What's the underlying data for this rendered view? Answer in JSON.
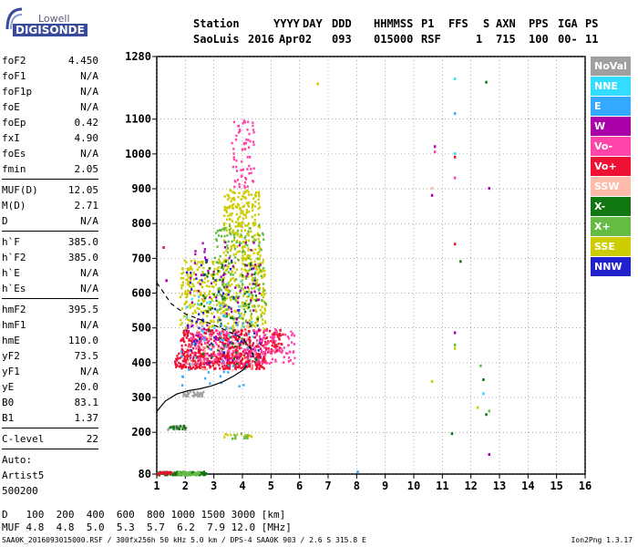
{
  "logo": {
    "line1": "Lowell",
    "line2": "DIGISONDE"
  },
  "header": {
    "labels": [
      "Station",
      "YYYY",
      "DAY",
      "DDD",
      "HHMMSS",
      "P1",
      "FFS",
      "S",
      "AXN",
      "PPS",
      "IGA",
      "PS"
    ],
    "values": [
      "SaoLuis",
      "2016",
      "Apr02",
      "093",
      "015000",
      "RSF",
      "1",
      "715",
      "100",
      "00-",
      "11"
    ]
  },
  "params": [
    [
      {
        "n": "foF2",
        "v": "4.450"
      },
      {
        "n": "foF1",
        "v": "N/A"
      },
      {
        "n": "foF1p",
        "v": "N/A"
      },
      {
        "n": "foE",
        "v": "N/A"
      },
      {
        "n": "foEp",
        "v": "0.42"
      },
      {
        "n": "fxI",
        "v": "4.90"
      },
      {
        "n": "foEs",
        "v": "N/A"
      },
      {
        "n": "fmin",
        "v": "2.05"
      }
    ],
    [
      {
        "n": "MUF(D)",
        "v": "12.05"
      },
      {
        "n": "M(D)",
        "v": "2.71"
      },
      {
        "n": "D",
        "v": "N/A"
      }
    ],
    [
      {
        "n": "h`F",
        "v": "385.0"
      },
      {
        "n": "h`F2",
        "v": "385.0"
      },
      {
        "n": "h`E",
        "v": "N/A"
      },
      {
        "n": "h`Es",
        "v": "N/A"
      }
    ],
    [
      {
        "n": "hmF2",
        "v": "395.5"
      },
      {
        "n": "hmF1",
        "v": "N/A"
      },
      {
        "n": "hmE",
        "v": "110.0"
      },
      {
        "n": "yF2",
        "v": "73.5"
      },
      {
        "n": "yF1",
        "v": "N/A"
      },
      {
        "n": "yE",
        "v": "20.0"
      },
      {
        "n": "B0",
        "v": "83.1"
      },
      {
        "n": "B1",
        "v": "1.37"
      }
    ],
    [
      {
        "n": "C-level",
        "v": "22"
      }
    ]
  ],
  "autoscaling": [
    "Auto:",
    "Artist5",
    "500200"
  ],
  "legend": [
    {
      "label": "NoVal",
      "color": "#a0a0a0"
    },
    {
      "label": "NNE",
      "color": "#33ddff"
    },
    {
      "label": "E",
      "color": "#33aaff"
    },
    {
      "label": "W",
      "color": "#aa00aa"
    },
    {
      "label": "Vo-",
      "color": "#ff44aa"
    },
    {
      "label": "Vo+",
      "color": "#ee1133"
    },
    {
      "label": "SSW",
      "color": "#ffbbaa"
    },
    {
      "label": "X-",
      "color": "#117711"
    },
    {
      "label": "X+",
      "color": "#66bb44"
    },
    {
      "label": "SSE",
      "color": "#cccc00"
    },
    {
      "label": "NNW",
      "color": "#2222cc"
    }
  ],
  "muf_table": {
    "d_label": "D",
    "d_values": "100  200  400  600  800 1000 1500 3000",
    "d_unit": "[km]",
    "muf_label": "MUF",
    "muf_values": "4.8  4.8  5.0  5.3  5.7  6.2  7.9 12.0",
    "muf_unit": "[MHz]"
  },
  "footer": {
    "left": "SAA0K_2016093015000.RSF / 300fx256h 50 kHz 5.0 km / DPS-4 SAA0K 903 / 2.6 S 315.8 E",
    "right": "Ion2Png 1.3.17"
  },
  "chart_data": {
    "type": "scatter",
    "title": "",
    "xlabel": "",
    "ylabel": "",
    "xlim": [
      1,
      16
    ],
    "ylim": [
      80,
      1280
    ],
    "x_ticks": [
      1,
      2,
      3,
      4,
      5,
      6,
      7,
      8,
      9,
      10,
      11,
      12,
      13,
      14,
      15,
      16
    ],
    "y_ticks": [
      80,
      200,
      300,
      400,
      500,
      600,
      700,
      800,
      900,
      1000,
      1100,
      1280
    ],
    "grid": true,
    "legend_placement": "right",
    "profile_curve": {
      "x": [
        1.0,
        1.3,
        1.7,
        2.1,
        2.5,
        2.9,
        3.3,
        3.7,
        4.0,
        4.15
      ],
      "y": [
        260,
        290,
        310,
        320,
        325,
        333,
        345,
        362,
        378,
        392
      ]
    },
    "dashed_curve": {
      "x": [
        1.0,
        1.5,
        2.0,
        2.5,
        3.0,
        3.5,
        4.0,
        4.3,
        4.45
      ],
      "y": [
        630,
        570,
        540,
        525,
        508,
        490,
        470,
        440,
        400
      ]
    },
    "echo_regions": [
      {
        "series": "Vo+",
        "x_range": [
          1.6,
          4.8
        ],
        "y_range": [
          385,
          430
        ],
        "count": 360
      },
      {
        "series": "Vo+",
        "x_range": [
          1.8,
          5.4
        ],
        "y_range": [
          430,
          500
        ],
        "count": 300
      },
      {
        "series": "Vo-",
        "x_range": [
          2.0,
          5.8
        ],
        "y_range": [
          400,
          500
        ],
        "count": 200
      },
      {
        "series": "SSE",
        "x_range": [
          1.8,
          4.8
        ],
        "y_range": [
          500,
          700
        ],
        "count": 420
      },
      {
        "series": "SSE",
        "x_range": [
          3.3,
          4.6
        ],
        "y_range": [
          700,
          900
        ],
        "count": 220
      },
      {
        "series": "X+",
        "x_range": [
          3.0,
          4.8
        ],
        "y_range": [
          520,
          800
        ],
        "count": 140
      },
      {
        "series": "Vo-",
        "x_range": [
          3.6,
          4.4
        ],
        "y_range": [
          900,
          1100
        ],
        "count": 70
      },
      {
        "series": "W",
        "x_range": [
          2.0,
          4.6
        ],
        "y_range": [
          400,
          750
        ],
        "count": 110
      },
      {
        "series": "X-",
        "x_range": [
          2.5,
          4.6
        ],
        "y_range": [
          400,
          700
        ],
        "count": 80
      },
      {
        "series": "NNW",
        "x_range": [
          2.0,
          4.6
        ],
        "y_range": [
          400,
          700
        ],
        "count": 50
      },
      {
        "series": "E",
        "x_range": [
          1.8,
          4.2
        ],
        "y_range": [
          330,
          550
        ],
        "count": 40
      },
      {
        "series": "NNE",
        "x_range": [
          2.0,
          4.4
        ],
        "y_range": [
          400,
          650
        ],
        "count": 25
      },
      {
        "series": "SSW",
        "x_range": [
          2.0,
          4.5
        ],
        "y_range": [
          380,
          520
        ],
        "count": 50
      },
      {
        "series": "NoVal",
        "x_range": [
          1.9,
          2.6
        ],
        "y_range": [
          305,
          320
        ],
        "count": 30
      },
      {
        "series": "X-",
        "x_range": [
          1.0,
          2.7
        ],
        "y_range": [
          80,
          90
        ],
        "count": 110
      },
      {
        "series": "X+",
        "x_range": [
          1.7,
          2.5
        ],
        "y_range": [
          80,
          90
        ],
        "count": 40
      },
      {
        "series": "Vo+",
        "x_range": [
          1.0,
          1.5
        ],
        "y_range": [
          80,
          90
        ],
        "count": 20
      },
      {
        "series": "NoVal",
        "x_range": [
          1.3,
          2.0
        ],
        "y_range": [
          210,
          222
        ],
        "count": 20
      },
      {
        "series": "X-",
        "x_range": [
          1.4,
          2.0
        ],
        "y_range": [
          212,
          222
        ],
        "count": 15
      },
      {
        "series": "SSE",
        "x_range": [
          3.3,
          4.4
        ],
        "y_range": [
          185,
          200
        ],
        "count": 15
      },
      {
        "series": "X+",
        "x_range": [
          3.5,
          4.2
        ],
        "y_range": [
          185,
          200
        ],
        "count": 10
      }
    ],
    "points": [
      {
        "x": 6.6,
        "y": 1205,
        "s": "SSE"
      },
      {
        "x": 10.7,
        "y": 1025,
        "s": "W"
      },
      {
        "x": 10.7,
        "y": 1010,
        "s": "Vo-"
      },
      {
        "x": 11.4,
        "y": 1220,
        "s": "NNE"
      },
      {
        "x": 11.4,
        "y": 1120,
        "s": "E"
      },
      {
        "x": 11.4,
        "y": 1005,
        "s": "NNE"
      },
      {
        "x": 11.4,
        "y": 995,
        "s": "Vo+"
      },
      {
        "x": 11.4,
        "y": 935,
        "s": "Vo-"
      },
      {
        "x": 10.6,
        "y": 905,
        "s": "SSW"
      },
      {
        "x": 10.6,
        "y": 885,
        "s": "W"
      },
      {
        "x": 11.4,
        "y": 745,
        "s": "Vo+"
      },
      {
        "x": 11.6,
        "y": 695,
        "s": "X-"
      },
      {
        "x": 12.5,
        "y": 1210,
        "s": "X-"
      },
      {
        "x": 12.6,
        "y": 905,
        "s": "W"
      },
      {
        "x": 11.4,
        "y": 490,
        "s": "W"
      },
      {
        "x": 11.4,
        "y": 455,
        "s": "X+"
      },
      {
        "x": 11.4,
        "y": 445,
        "s": "SSE"
      },
      {
        "x": 10.6,
        "y": 350,
        "s": "SSE"
      },
      {
        "x": 12.3,
        "y": 395,
        "s": "X+"
      },
      {
        "x": 12.4,
        "y": 355,
        "s": "X-"
      },
      {
        "x": 12.4,
        "y": 315,
        "s": "NNE"
      },
      {
        "x": 12.2,
        "y": 275,
        "s": "SSE"
      },
      {
        "x": 12.6,
        "y": 265,
        "s": "X+"
      },
      {
        "x": 12.5,
        "y": 255,
        "s": "X-"
      },
      {
        "x": 11.3,
        "y": 200,
        "s": "X-"
      },
      {
        "x": 8.0,
        "y": 90,
        "s": "E"
      },
      {
        "x": 12.6,
        "y": 140,
        "s": "W"
      },
      {
        "x": 1.2,
        "y": 735,
        "s": "Vo+"
      },
      {
        "x": 1.3,
        "y": 640,
        "s": "W"
      }
    ]
  }
}
